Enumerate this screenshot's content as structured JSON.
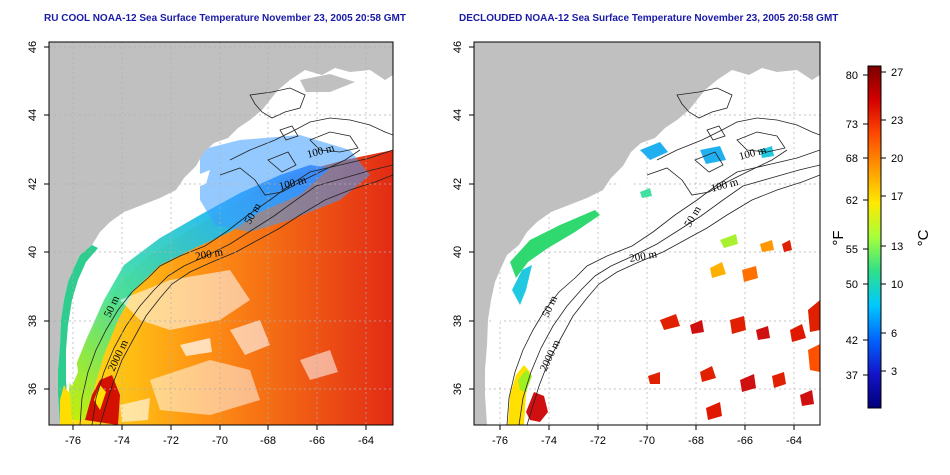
{
  "maps": [
    {
      "id": "left",
      "title": "RU COOL NOAA-12 Sea Surface Temperature November 23, 2005 20:58 GMT",
      "lon_ticks": [
        "-76",
        "-74",
        "-72",
        "-70",
        "-68",
        "-66",
        "-64"
      ],
      "lat_ticks": [
        "36",
        "38",
        "40",
        "42",
        "44",
        "46"
      ],
      "contour_labels": [
        "100 m",
        "100 m",
        "50 m",
        "200 m",
        "50 m",
        "2000 m"
      ]
    },
    {
      "id": "right",
      "title": "DECLOUDED NOAA-12 Sea Surface Temperature November 23, 2005 20:58 GMT",
      "lon_ticks": [
        "-76",
        "-74",
        "-72",
        "-70",
        "-68",
        "-66",
        "-64"
      ],
      "lat_ticks": [
        "36",
        "38",
        "40",
        "42",
        "44",
        "46"
      ],
      "contour_labels": [
        "100 m",
        "100 m",
        "50 m",
        "200 m",
        "50 m",
        "2000 m"
      ]
    }
  ],
  "colorbar": {
    "fahrenheit_ticks": [
      "80",
      "73",
      "68",
      "62",
      "55",
      "50",
      "42",
      "37"
    ],
    "celsius_ticks": [
      "27",
      "23",
      "20",
      "17",
      "13",
      "10",
      "6",
      "3"
    ],
    "fahrenheit_unit": "°F",
    "celsius_unit": "°C",
    "colors": [
      "#7a0000",
      "#d40000",
      "#ff4a00",
      "#ff9a00",
      "#ffe800",
      "#a6ff3a",
      "#2ee08a",
      "#00c8ff",
      "#0064ff",
      "#1414c8",
      "#00007a"
    ]
  },
  "colors": {
    "land": "#c0c0c0",
    "ocean": "#ffffff",
    "title": "#1a1aa8",
    "grid": "#b0b0b0"
  }
}
